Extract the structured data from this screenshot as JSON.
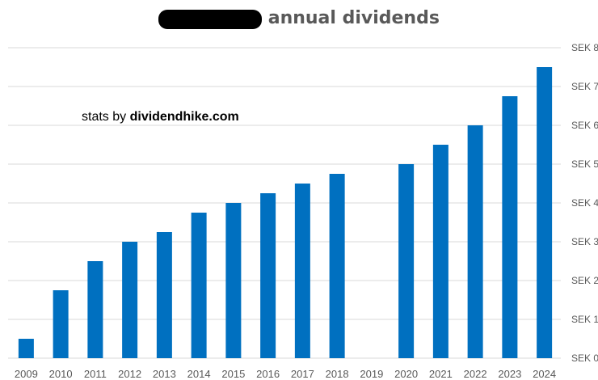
{
  "chart_data": {
    "type": "bar",
    "title": "annual dividends",
    "title_prefix_redacted": true,
    "source_prefix": "stats by",
    "source_site": "dividendhike.com",
    "categories": [
      "2009",
      "2010",
      "2011",
      "2012",
      "2013",
      "2014",
      "2015",
      "2016",
      "2017",
      "2018",
      "2019",
      "2020",
      "2021",
      "2022",
      "2023",
      "2024"
    ],
    "values": [
      0.5,
      1.75,
      2.5,
      3.0,
      3.25,
      3.75,
      4.0,
      4.25,
      4.5,
      4.75,
      0,
      5.0,
      5.5,
      6.0,
      6.75,
      7.5
    ],
    "ylim": [
      0,
      8
    ],
    "yticks": [
      {
        "value": 0,
        "label": "SEK 0"
      },
      {
        "value": 1,
        "label": "SEK 1"
      },
      {
        "value": 2,
        "label": "SEK 2"
      },
      {
        "value": 3,
        "label": "SEK 3"
      },
      {
        "value": 4,
        "label": "SEK 4"
      },
      {
        "value": 5,
        "label": "SEK 5"
      },
      {
        "value": 6,
        "label": "SEK 6"
      },
      {
        "value": 7,
        "label": "SEK 7"
      },
      {
        "value": 8,
        "label": "SEK 8"
      }
    ],
    "y_axis_position": "right",
    "grid": true,
    "bar_color": "#0070C0",
    "grid_color": "#D9D9D9",
    "text_color": "#595959"
  }
}
